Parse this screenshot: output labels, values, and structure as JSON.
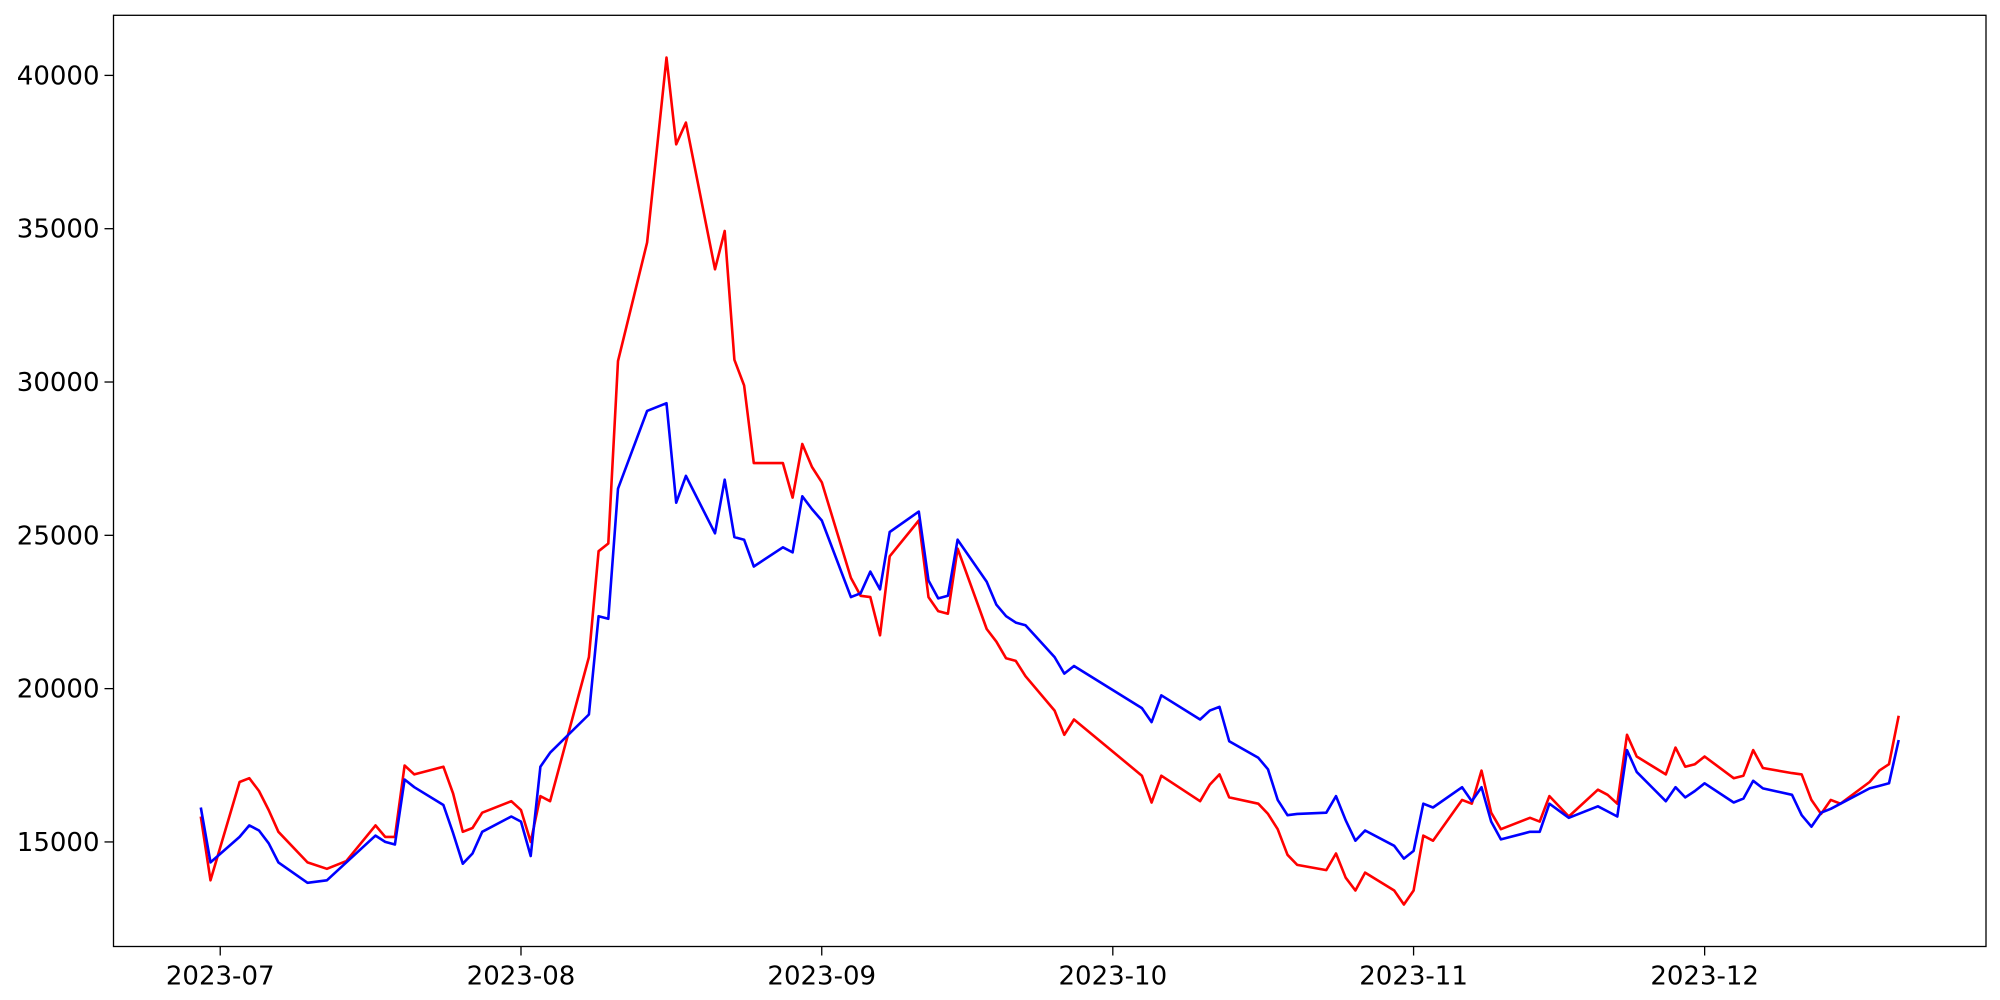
{
  "chart_data": {
    "type": "line",
    "x": [
      "2023-06-29",
      "2023-06-30",
      "2023-07-03",
      "2023-07-04",
      "2023-07-05",
      "2023-07-06",
      "2023-07-07",
      "2023-07-10",
      "2023-07-12",
      "2023-07-14",
      "2023-07-17",
      "2023-07-18",
      "2023-07-19",
      "2023-07-20",
      "2023-07-21",
      "2023-07-24",
      "2023-07-25",
      "2023-07-26",
      "2023-07-27",
      "2023-07-28",
      "2023-07-31",
      "2023-08-01",
      "2023-08-02",
      "2023-08-03",
      "2023-08-04",
      "2023-08-08",
      "2023-08-09",
      "2023-08-10",
      "2023-08-11",
      "2023-08-14",
      "2023-08-16",
      "2023-08-17",
      "2023-08-18",
      "2023-08-21",
      "2023-08-22",
      "2023-08-23",
      "2023-08-24",
      "2023-08-25",
      "2023-08-28",
      "2023-08-29",
      "2023-08-30",
      "2023-08-31",
      "2023-09-01",
      "2023-09-04",
      "2023-09-05",
      "2023-09-06",
      "2023-09-07",
      "2023-09-08",
      "2023-09-11",
      "2023-09-12",
      "2023-09-13",
      "2023-09-14",
      "2023-09-15",
      "2023-09-18",
      "2023-09-19",
      "2023-09-20",
      "2023-09-21",
      "2023-09-22",
      "2023-09-25",
      "2023-09-26",
      "2023-09-27",
      "2023-10-04",
      "2023-10-05",
      "2023-10-06",
      "2023-10-10",
      "2023-10-11",
      "2023-10-12",
      "2023-10-13",
      "2023-10-16",
      "2023-10-17",
      "2023-10-18",
      "2023-10-19",
      "2023-10-20",
      "2023-10-23",
      "2023-10-24",
      "2023-10-25",
      "2023-10-26",
      "2023-10-27",
      "2023-10-30",
      "2023-10-31",
      "2023-11-01",
      "2023-11-02",
      "2023-11-03",
      "2023-11-06",
      "2023-11-07",
      "2023-11-08",
      "2023-11-09",
      "2023-11-10",
      "2023-11-13",
      "2023-11-14",
      "2023-11-15",
      "2023-11-17",
      "2023-11-20",
      "2023-11-21",
      "2023-11-22",
      "2023-11-23",
      "2023-11-24",
      "2023-11-27",
      "2023-11-28",
      "2023-11-29",
      "2023-11-30",
      "2023-12-01",
      "2023-12-04",
      "2023-12-05",
      "2023-12-06",
      "2023-12-07",
      "2023-12-10",
      "2023-12-11",
      "2023-12-12",
      "2023-12-13",
      "2023-12-14",
      "2023-12-15",
      "2023-12-18",
      "2023-12-19",
      "2023-12-20",
      "2023-12-21"
    ],
    "series": [
      {
        "color": "#ff0000",
        "values": [
          15830,
          13750,
          16954,
          17078,
          16662,
          16038,
          15331,
          14333,
          14125,
          14374,
          15540,
          15165,
          15165,
          17494,
          17203,
          17453,
          16579,
          15331,
          15456,
          15955,
          16330,
          16038,
          15000,
          16496,
          16330,
          21030,
          24483,
          24733,
          30682,
          34550,
          40582,
          37754,
          38461,
          33677,
          34925,
          30723,
          29891,
          27354,
          27354,
          26230,
          27978,
          27229,
          26730,
          23610,
          23027,
          22986,
          21738,
          24317,
          25482,
          22986,
          22528,
          22445,
          24566,
          21946,
          21530,
          20989,
          20906,
          20406,
          19283,
          18493,
          18992,
          17162,
          16288,
          17162,
          16330,
          16870,
          17203,
          16454,
          16246,
          15914,
          15414,
          14582,
          14250,
          14083,
          14624,
          13834,
          13418,
          14000,
          13418,
          12960,
          13418,
          15206,
          15040,
          16371,
          16246,
          17328,
          15955,
          15414,
          15789,
          15664,
          16496,
          15830,
          16704,
          16538,
          16246,
          18493,
          17786,
          17203,
          18077,
          17453,
          17536,
          17786,
          17078,
          17162,
          17994,
          17411,
          17245,
          17203,
          16371,
          15914,
          16371,
          16246,
          16954,
          17328,
          17536,
          19117
        ]
      },
      {
        "color": "#0000ff",
        "values": [
          16122,
          14333,
          15165,
          15540,
          15373,
          14957,
          14333,
          13667,
          13750,
          14333,
          15206,
          15000,
          14915,
          17037,
          16787,
          16205,
          15290,
          14291,
          14624,
          15331,
          15830,
          15664,
          14541,
          17453,
          17910,
          19158,
          22362,
          22278,
          26522,
          29059,
          29309,
          26064,
          26938,
          25066,
          26813,
          24941,
          24858,
          23984,
          24608,
          24442,
          26272,
          25856,
          25482,
          22986,
          23110,
          23818,
          23235,
          25107,
          25773,
          23526,
          22944,
          23027,
          24858,
          23485,
          22736,
          22362,
          22154,
          22070,
          21030,
          20490,
          20739,
          19366,
          18909,
          19782,
          18992,
          19283,
          19408,
          18285,
          17744,
          17370,
          16371,
          15872,
          15914,
          15955,
          16496,
          15706,
          15040,
          15373,
          14874,
          14458,
          14707,
          16246,
          16122,
          16787,
          16330,
          16787,
          15664,
          15082,
          15331,
          15331,
          16246,
          15789,
          16163,
          15997,
          15830,
          17994,
          17286,
          16330,
          16787,
          16454,
          16662,
          16912,
          16288,
          16413,
          16995,
          16746,
          16538,
          15872,
          15498,
          15955,
          16080,
          16246,
          16746,
          16829,
          16912,
          18326
        ]
      }
    ],
    "xlim": [
      "2023-06-20",
      "2023-12-30"
    ],
    "xticks": [
      {
        "value": "2023-07-01",
        "label": "2023-07"
      },
      {
        "value": "2023-08-01",
        "label": "2023-08"
      },
      {
        "value": "2023-09-01",
        "label": "2023-09"
      },
      {
        "value": "2023-10-01",
        "label": "2023-10"
      },
      {
        "value": "2023-11-01",
        "label": "2023-11"
      },
      {
        "value": "2023-12-01",
        "label": "2023-12"
      }
    ],
    "ylim": [
      11590,
      41960
    ],
    "yticks": [
      15000,
      20000,
      25000,
      30000,
      35000,
      40000
    ],
    "grid": false
  }
}
